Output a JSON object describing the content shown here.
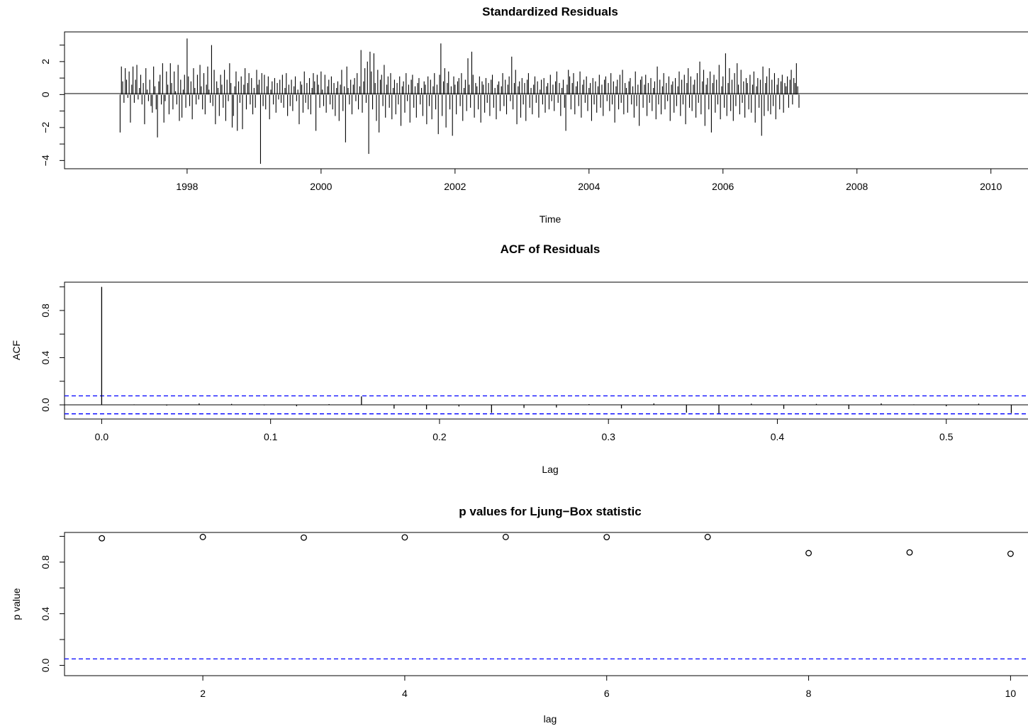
{
  "chart_data": [
    {
      "type": "bar",
      "title": "Standardized Residuals",
      "xlabel": "Time",
      "ylabel": "",
      "xlim": [
        1996.17,
        2010.67
      ],
      "ylim": [
        -4.5,
        3.8
      ],
      "xticks": [
        1998,
        2000,
        2002,
        2004,
        2006,
        2008,
        2010
      ],
      "xtick_labels": [
        "1998",
        "2000",
        "2002",
        "2004",
        "2006",
        "2008",
        "2010"
      ],
      "yticks": [
        -4,
        -2,
        0,
        2
      ],
      "ytick_labels": [
        "−4",
        "−2",
        "0",
        "2"
      ],
      "reference_line": 0,
      "series": [
        {
          "start": 1997.0,
          "frequency": 52,
          "values": [
            -2.3,
            1.7,
            0.8,
            -0.5,
            1.6,
            0.9,
            -0.2,
            1.4,
            -1.7,
            0.6,
            1.7,
            -0.5,
            0.9,
            1.8,
            -0.3,
            0.4,
            1.2,
            -0.6,
            0.7,
            -1.8,
            1.6,
            0.3,
            -0.4,
            0.9,
            -0.7,
            -1.1,
            1.7,
            0.5,
            -0.9,
            -2.6,
            0.8,
            1.2,
            -0.6,
            1.9,
            -1.7,
            -0.4,
            1.4,
            0.6,
            -1.2,
            1.9,
            0.7,
            -0.9,
            1.4,
            0.2,
            -0.6,
            1.8,
            -1.6,
            0.9,
            -1.4,
            0.3,
            1.2,
            -0.8,
            3.4,
            1.1,
            -0.7,
            0.8,
            -1.5,
            1.6,
            0.4,
            -0.6,
            1.2,
            -0.3,
            1.8,
            0.5,
            -0.9,
            1.3,
            -1.2,
            0.6,
            1.7,
            0.3,
            -0.5,
            3.0,
            -0.7,
            1.5,
            -1.8,
            0.8,
            0.4,
            -1.3,
            1.2,
            0.6,
            -0.8,
            1.5,
            -1.6,
            0.9,
            -0.4,
            1.9,
            0.7,
            -2.0,
            -1.3,
            0.5,
            1.4,
            -2.2,
            0.8,
            -0.5,
            1.1,
            -2.1,
            0.6,
            1.6,
            -0.9,
            0.7,
            1.3,
            -0.6,
            1.0,
            -1.2,
            0.4,
            -0.8,
            1.5,
            0.6,
            0.9,
            -4.2,
            1.3,
            -0.7,
            1.2,
            -0.9,
            0.5,
            1.1,
            -1.5,
            0.3,
            0.8,
            -0.6,
            1.0,
            -1.1,
            0.7,
            -0.3,
            0.9,
            -0.5,
            1.2,
            -0.8,
            0.4,
            1.3,
            -1.3,
            0.6,
            -0.7,
            0.9,
            -1.0,
            0.5,
            1.1,
            -0.4,
            0.3,
            -1.8,
            0.8,
            0.6,
            -1.1,
            1.4,
            -0.5,
            0.7,
            -0.9,
            1.0,
            -1.2,
            0.4,
            1.3,
            0.8,
            -2.2,
            1.2,
            0.6,
            -0.8,
            1.4,
            0.3,
            -0.7,
            1.2,
            -1.1,
            0.5,
            0.9,
            -0.6,
            1.1,
            -0.9,
            0.7,
            -1.3,
            0.4,
            0.8,
            -1.6,
            0.6,
            1.5,
            -1.0,
            0.5,
            -2.9,
            1.7,
            0.4,
            -0.6,
            0.9,
            -1.2,
            0.6,
            1.0,
            -0.4,
            1.3,
            -0.9,
            0.5,
            2.7,
            -1.1,
            0.8,
            1.6,
            -0.5,
            2.0,
            -3.6,
            2.6,
            1.4,
            -0.9,
            2.5,
            0.7,
            -1.6,
            1.5,
            -2.3,
            0.9,
            1.2,
            -0.7,
            1.8,
            -1.4,
            0.6,
            1.1,
            -0.8,
            1.3,
            -1.5,
            0.4,
            0.9,
            -1.2,
            0.7,
            -0.6,
            1.1,
            -1.9,
            0.5,
            0.8,
            -1.1,
            1.3,
            -0.4,
            0.6,
            -1.7,
            0.9,
            1.2,
            -0.8,
            0.5,
            -1.4,
            0.7,
            1.0,
            -0.6,
            0.4,
            -1.3,
            0.8,
            0.6,
            -1.8,
            1.1,
            -0.7,
            0.9,
            -1.5,
            0.5,
            1.3,
            -0.9,
            0.6,
            -2.4,
            1.2,
            3.1,
            -1.3,
            0.8,
            1.6,
            -2.0,
            0.7,
            1.4,
            -0.9,
            0.5,
            -2.5,
            1.1,
            0.6,
            -1.2,
            0.8,
            1.0,
            -0.7,
            1.3,
            -1.6,
            0.4,
            0.9,
            -1.0,
            2.2,
            0.6,
            -0.8,
            2.6,
            1.2,
            -1.4,
            0.7,
            0.5,
            -0.9,
            1.1,
            -1.7,
            0.8,
            0.6,
            -1.1,
            1.0,
            -0.5,
            0.7,
            -1.3,
            0.9,
            1.2,
            -0.8,
            0.4,
            -1.5,
            0.6,
            0.8,
            -1.0,
            0.5,
            1.3,
            -0.7,
            0.9,
            -1.2,
            0.6,
            1.1,
            -0.4,
            2.3,
            -0.9,
            0.7,
            1.5,
            -1.8,
            0.5,
            0.8,
            -1.4,
            1.0,
            -0.6,
            0.7,
            -1.6,
            0.9,
            1.3,
            -0.8,
            0.4,
            -1.2,
            0.6,
            1.1,
            -0.5,
            0.8,
            -1.4,
            0.3,
            0.9,
            -0.6,
            1.0,
            -1.1,
            0.5,
            0.7,
            -0.9,
            1.2,
            -0.4,
            0.6,
            -1.0,
            0.8,
            1.4,
            -0.5,
            0.7,
            -1.3,
            0.4,
            0.9,
            -0.8,
            -2.2,
            0.6,
            1.5,
            1.1,
            -0.9,
            0.7,
            1.3,
            -1.2,
            0.5,
            0.8,
            -0.7,
            1.4,
            -1.4,
            0.6,
            0.9,
            -0.5,
            1.1,
            -1.0,
            0.4,
            0.7,
            -1.6,
            1.0,
            -0.6,
            0.8,
            -1.1,
            0.5,
            1.2,
            -0.8,
            0.6,
            -1.3,
            0.9,
            1.1,
            -0.4,
            0.7,
            -1.0,
            1.3,
            -0.6,
            0.8,
            -1.7,
            0.5,
            0.9,
            -0.9,
            1.2,
            -0.5,
            1.5,
            -1.2,
            0.7,
            0.4,
            -1.1,
            0.8,
            1.0,
            -0.6,
            0.5,
            -1.4,
            1.4,
            -0.7,
            0.6,
            -1.9,
            0.9,
            1.1,
            -0.8,
            0.6,
            1.2,
            -1.3,
            0.7,
            -0.5,
            1.0,
            -1.0,
            0.4,
            0.8,
            -1.5,
            1.7,
            -0.6,
            0.9,
            -1.2,
            0.5,
            1.3,
            -0.9,
            0.7,
            -0.4,
            1.1,
            -1.6,
            0.6,
            0.8,
            -1.1,
            1.0,
            -0.7,
            0.5,
            1.4,
            -1.3,
            0.9,
            -0.6,
            1.2,
            -1.8,
            0.7,
            1.6,
            -0.8,
            1.1,
            -1.0,
            0.6,
            0.9,
            -1.4,
            1.3,
            -0.5,
            2.0,
            -1.2,
            0.8,
            1.5,
            -1.9,
            0.6,
            1.0,
            -0.9,
            1.4,
            -2.3,
            0.7,
            1.2,
            -1.1,
            0.9,
            -0.6,
            1.8,
            -1.5,
            0.5,
            1.1,
            -0.8,
            2.5,
            -1.3,
            0.7,
            1.6,
            -1.0,
            0.9,
            -1.6,
            1.3,
            -0.7,
            1.9,
            0.6,
            -1.2,
            1.5,
            -0.5,
            0.8,
            -1.4,
            1.0,
            0.7,
            -0.9,
            1.2,
            -1.1,
            0.6,
            1.4,
            -1.7,
            0.5,
            1.0,
            -0.8,
            0.9,
            -2.5,
            1.7,
            -1.3,
            0.7,
            1.1,
            -1.0,
            1.6,
            -1.2,
            0.9,
            -0.7,
            1.3,
            -1.5,
            0.6,
            1.0,
            -0.9,
            0.8,
            1.2,
            -1.1,
            0.7,
            0.5,
            1.1,
            -0.8,
            0.9,
            1.5,
            -0.6,
            1.0,
            0.7,
            1.9,
            0.5,
            -0.8
          ]
        }
      ]
    },
    {
      "type": "bar",
      "title": "ACF of Residuals",
      "xlabel": "Lag",
      "ylabel": "ACF",
      "xlim": [
        -0.022,
        0.553
      ],
      "ylim": [
        -0.12,
        1.04
      ],
      "xticks": [
        0.0,
        0.1,
        0.2,
        0.3,
        0.4,
        0.5
      ],
      "xtick_labels": [
        "0.0",
        "0.1",
        "0.2",
        "0.3",
        "0.4",
        "0.5"
      ],
      "yticks": [
        0.0,
        0.4,
        0.8
      ],
      "ytick_labels": [
        "0.0",
        "0.4",
        "0.8"
      ],
      "confidence_bounds": [
        0.076,
        -0.076
      ],
      "x": [
        0.0,
        0.0192,
        0.0385,
        0.0577,
        0.0769,
        0.0962,
        0.1154,
        0.1346,
        0.1538,
        0.1731,
        0.1923,
        0.2115,
        0.2308,
        0.25,
        0.2692,
        0.2885,
        0.3077,
        0.3269,
        0.3462,
        0.3654,
        0.3846,
        0.4038,
        0.4231,
        0.4423,
        0.4615,
        0.4808,
        0.5,
        0.5192,
        0.5385
      ],
      "values": [
        1.0,
        0.004,
        -0.006,
        0.012,
        0.008,
        -0.004,
        -0.012,
        0.006,
        0.072,
        -0.032,
        -0.038,
        -0.014,
        -0.068,
        -0.026,
        -0.022,
        0.006,
        -0.03,
        0.012,
        -0.066,
        -0.072,
        0.01,
        -0.034,
        0.008,
        -0.036,
        0.012,
        0.004,
        -0.012,
        0.01,
        -0.07
      ]
    },
    {
      "type": "scatter",
      "title": "p values for Ljung−Box statistic",
      "xlabel": "lag",
      "ylabel": "p value",
      "xlim": [
        0.63,
        10.25
      ],
      "ylim": [
        -0.08,
        1.03
      ],
      "xticks": [
        2,
        4,
        6,
        8,
        10
      ],
      "xtick_labels": [
        "2",
        "4",
        "6",
        "8",
        "10"
      ],
      "yticks": [
        0.0,
        0.4,
        0.8
      ],
      "ytick_labels": [
        "0.0",
        "0.4",
        "0.8"
      ],
      "reference_line": 0.05,
      "x": [
        1,
        2,
        3,
        4,
        5,
        6,
        7,
        8,
        9,
        10
      ],
      "values": [
        0.985,
        0.995,
        0.99,
        0.992,
        0.995,
        0.994,
        0.995,
        0.87,
        0.875,
        0.865
      ]
    }
  ]
}
